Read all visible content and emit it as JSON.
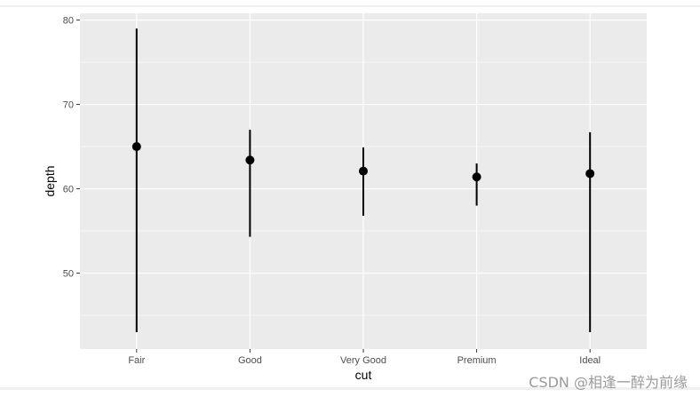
{
  "chart_data": {
    "type": "pointrange",
    "title": "",
    "xlabel": "cut",
    "ylabel": "depth",
    "categories": [
      "Fair",
      "Good",
      "Very Good",
      "Premium",
      "Ideal"
    ],
    "series": [
      {
        "points": [
          {
            "category": "Fair",
            "y": 65.0,
            "ymin": 43.0,
            "ymax": 79.0
          },
          {
            "category": "Good",
            "y": 63.4,
            "ymin": 54.3,
            "ymax": 67.0
          },
          {
            "category": "Very Good",
            "y": 62.1,
            "ymin": 56.8,
            "ymax": 64.9
          },
          {
            "category": "Premium",
            "y": 61.4,
            "ymin": 58.0,
            "ymax": 63.0
          },
          {
            "category": "Ideal",
            "y": 61.8,
            "ymin": 43.0,
            "ymax": 66.7
          }
        ]
      }
    ],
    "ylim": [
      41.0,
      80.8
    ],
    "yticks": [
      50,
      60,
      70,
      80
    ],
    "grid": true,
    "colors": {
      "panel": "#ebebeb",
      "grid": "#ffffff",
      "mark": "#000000"
    }
  },
  "watermark": "CSDN @相逢一醉为前缘"
}
